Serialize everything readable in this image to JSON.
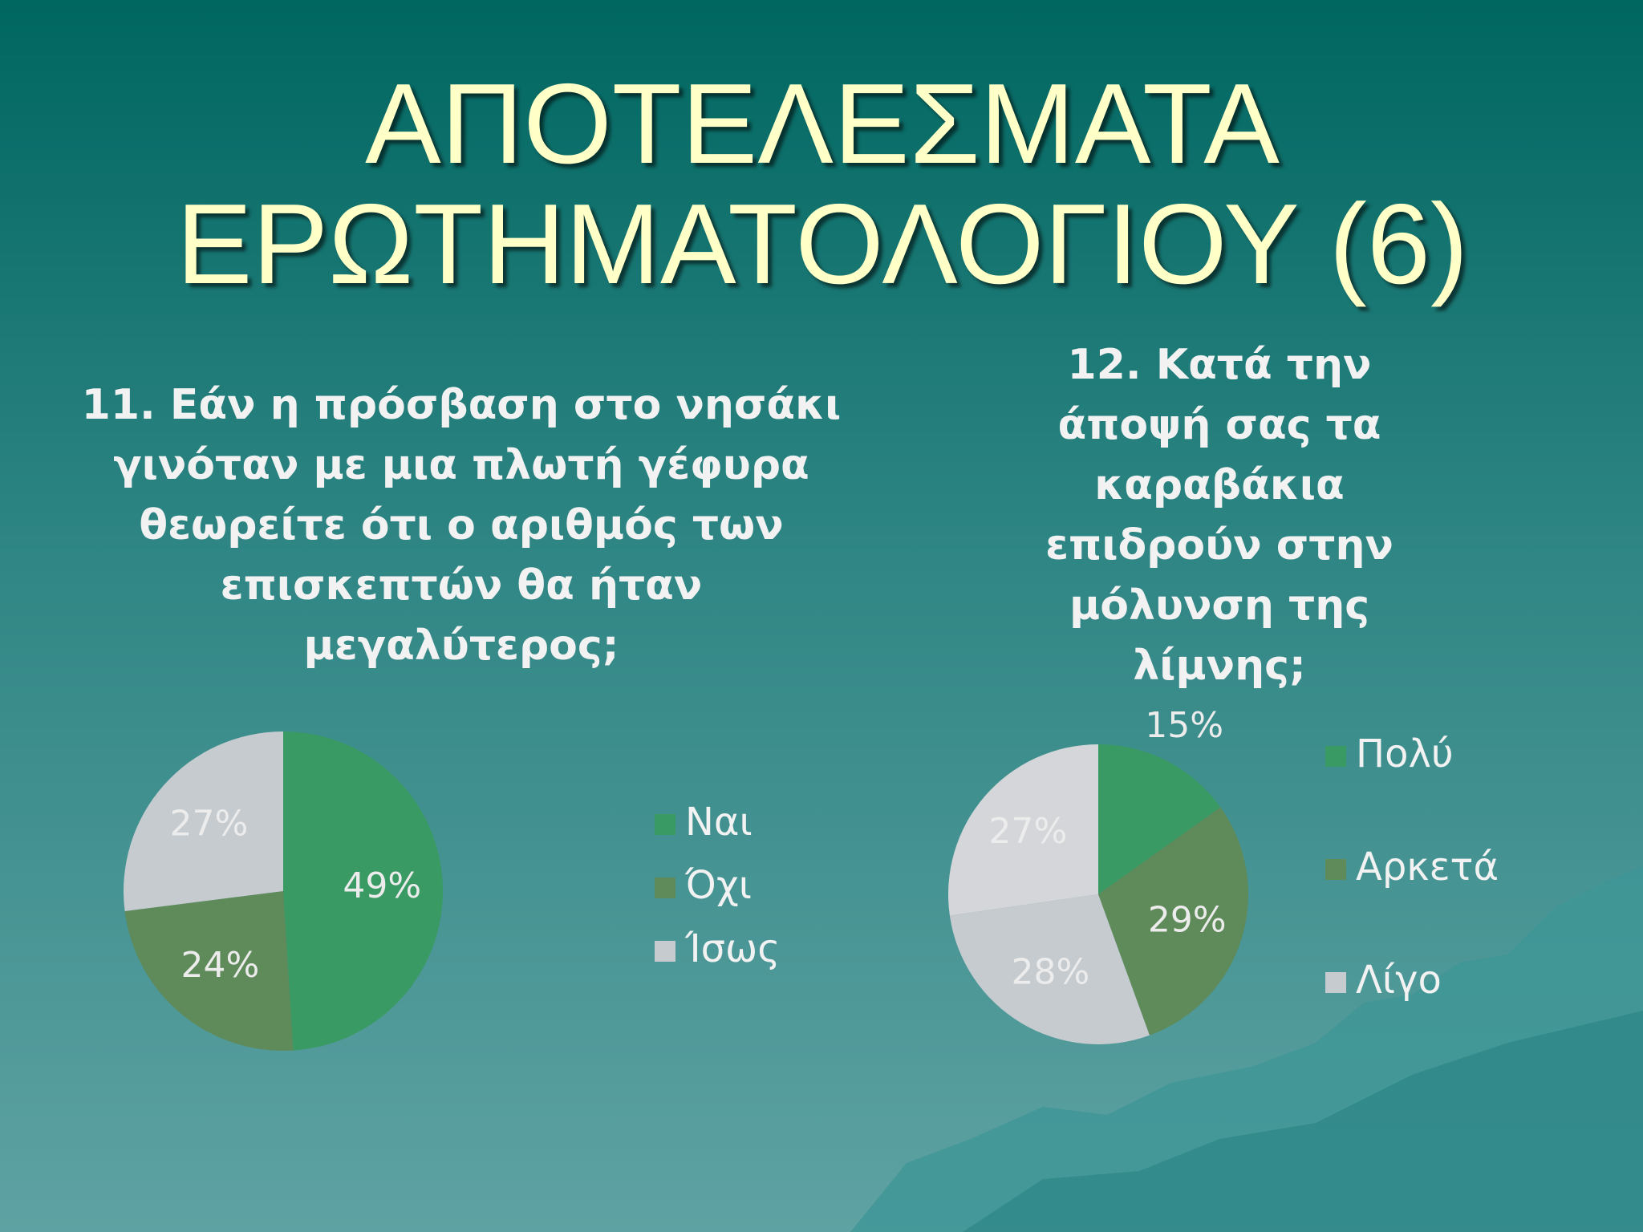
{
  "title": "ΑΠΟΤΕΛΕΣΜΑΤΑ ΕΡΩΤΗΜΑΤΟΛΟΓΙΟΥ (6)",
  "chart_data": [
    {
      "type": "pie",
      "title": "11. Εάν η πρόσβαση στο νησάκι γινόταν με μια πλωτή γέφυρα θεωρείτε ότι ο αριθμός των επισκεπτών θα ήταν μεγαλύτερος;",
      "categories": [
        "Ναι",
        "Όχι",
        "Ίσως"
      ],
      "values": [
        49,
        24,
        27
      ],
      "value_labels": [
        "49%",
        "24%",
        "27%"
      ],
      "colors": [
        "#3a9a64",
        "#5f8a5a",
        "#c6cbcf"
      ],
      "legend": "right"
    },
    {
      "type": "pie",
      "title": "12. Κατά την άποψή σας τα καραβάκια επιδρούν στην μόλυνση της λίμνης;",
      "categories": [
        "Πολύ",
        "Αρκετά",
        "Λίγο",
        null
      ],
      "values": [
        15,
        29,
        28,
        27
      ],
      "value_labels": [
        "15%",
        "29%",
        "28%",
        "27%"
      ],
      "colors": [
        "#3a9a64",
        "#5f8a5a",
        "#c6cbcf",
        "#d4d6d9"
      ],
      "legend": "right"
    }
  ]
}
